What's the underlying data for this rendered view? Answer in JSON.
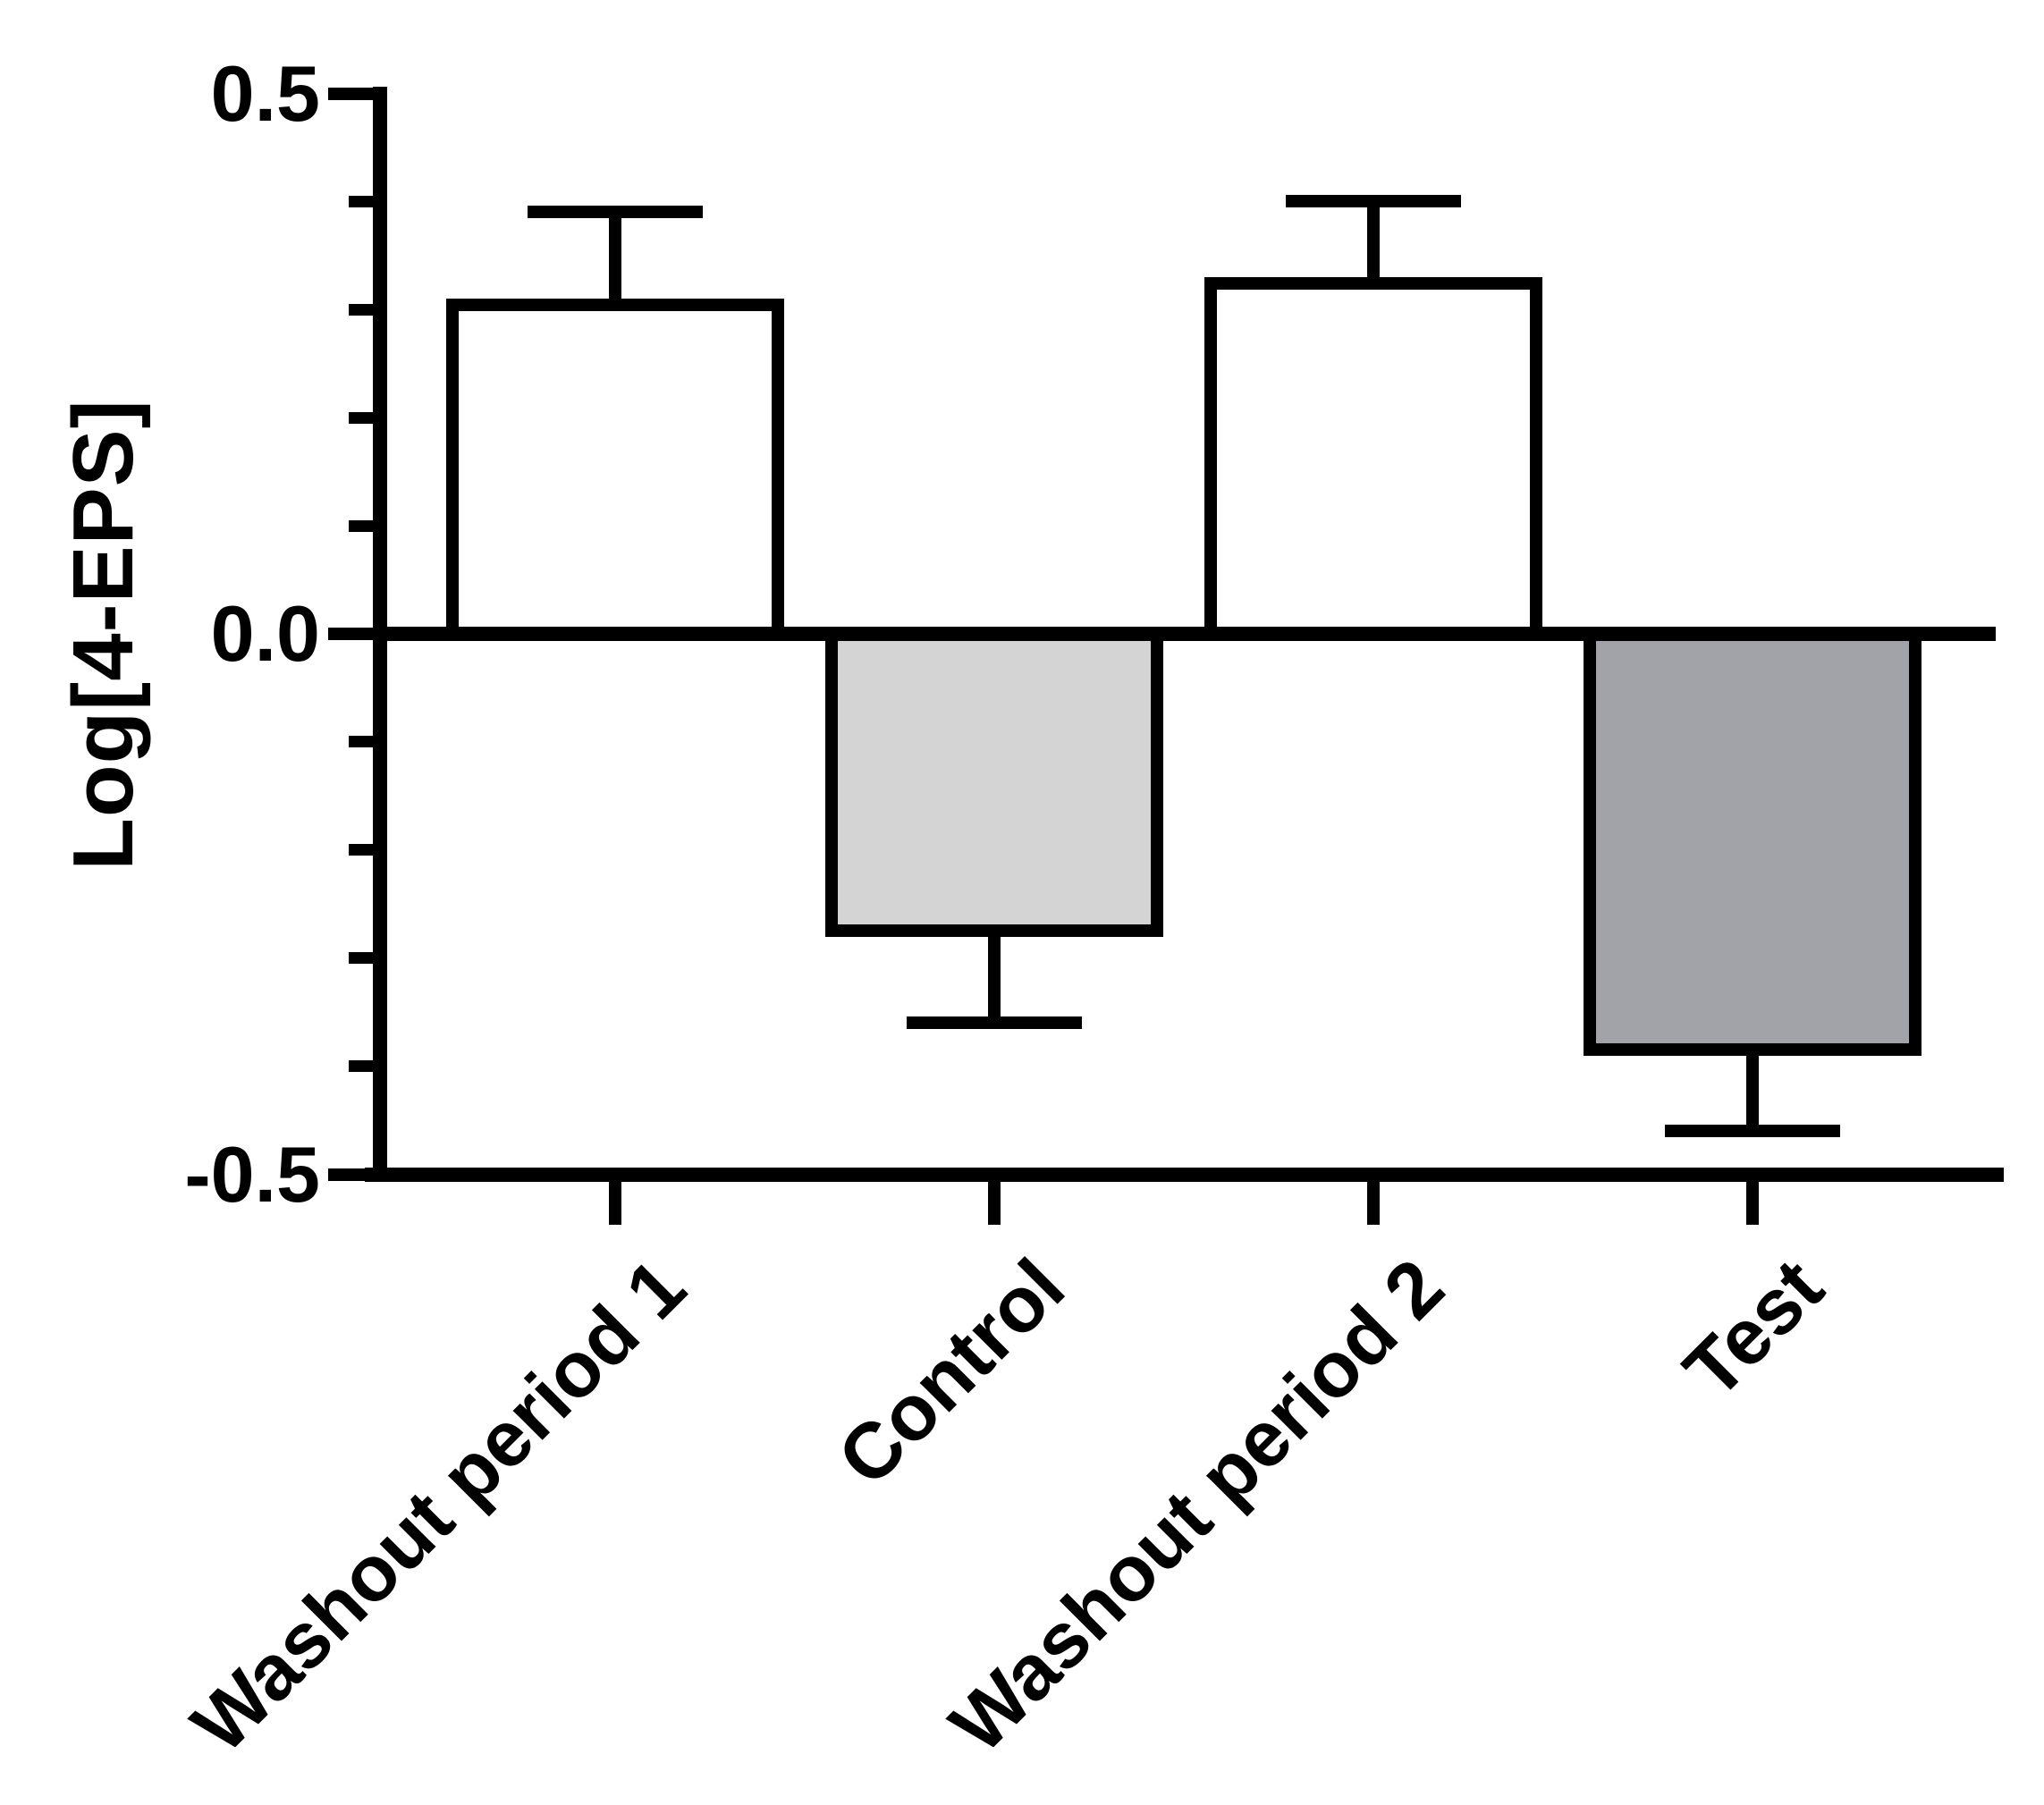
{
  "figure": {
    "background": "#ffffff",
    "text_color": "#000000"
  },
  "chart_data": {
    "type": "bar",
    "title": "",
    "xlabel": "",
    "ylabel": "Log[4-EPS]",
    "categories": [
      "Washout period 1",
      "Control",
      "Washout period 2",
      "Test"
    ],
    "values": [
      0.31,
      -0.28,
      0.33,
      -0.39
    ],
    "errors": [
      0.08,
      0.08,
      0.07,
      0.07
    ],
    "error_style": "one-sided whisker with cap, pointing away from zero (SEM)",
    "bar_colors": [
      "#ffffff",
      "#d4d4d4",
      "#ffffff",
      "#a1a3a8"
    ],
    "bar_border_color": "#000000",
    "baseline_value": 0,
    "ylim": [
      -0.5,
      0.5
    ],
    "yticks": [
      {
        "value": 0.5,
        "label": "0.5"
      },
      {
        "value": 0.0,
        "label": "0.0"
      },
      {
        "value": -0.5,
        "label": "-0.5"
      }
    ],
    "minor_tick_step": 0.1,
    "x_tick_label_rotation_deg": 45,
    "grid": false,
    "legend": false
  }
}
